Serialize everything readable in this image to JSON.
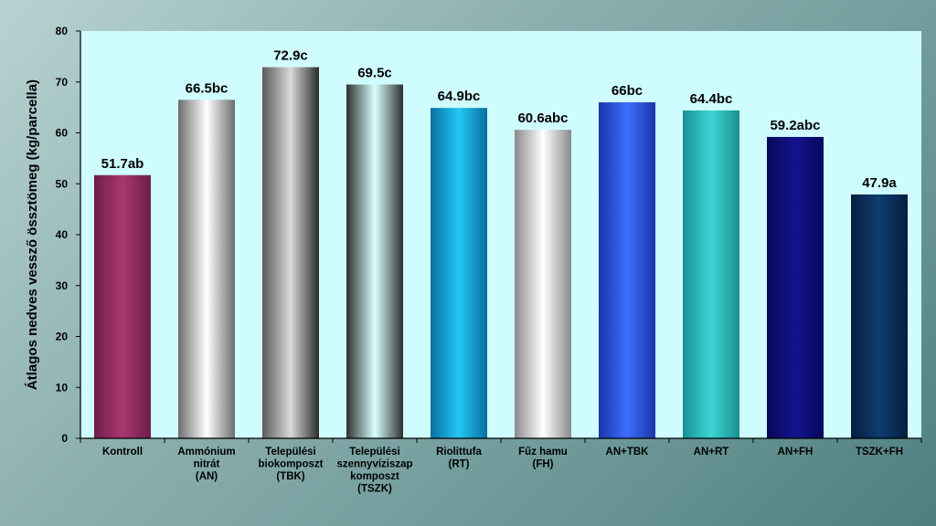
{
  "chart_data": {
    "type": "bar",
    "title": "",
    "xlabel": "",
    "ylabel": "Átlagos nedves vessző össztömeg  (kg/parcella)",
    "ylim": [
      0,
      80
    ],
    "yticks": [
      0,
      10,
      20,
      30,
      40,
      50,
      60,
      70,
      80
    ],
    "grid": false,
    "categories": [
      [
        "Kontroll"
      ],
      [
        "Ammónium",
        "nitrát",
        "(AN)"
      ],
      [
        "Települési",
        "biokomposzt",
        "(TBK)"
      ],
      [
        "Települési",
        "szennyvíziszap",
        "komposzt",
        "(TSZK)"
      ],
      [
        "Riolittufa",
        "(RT)"
      ],
      [
        "Fűz hamu",
        "(FH)"
      ],
      [
        "AN+TBK"
      ],
      [
        "AN+RT"
      ],
      [
        "AN+FH"
      ],
      [
        "TSZK+FH"
      ]
    ],
    "values": [
      51.7,
      66.5,
      72.9,
      69.5,
      64.9,
      60.6,
      66.0,
      64.4,
      59.2,
      47.9
    ],
    "data_labels": [
      "51.7ab",
      "66.5bc",
      "72.9c",
      "69.5c",
      "64.9bc",
      "60.6abc",
      "66bc",
      "64.4bc",
      "59.2abc",
      "47.9a"
    ],
    "bar_colors": [
      [
        "#6e1d48",
        "#a8386f",
        "#6e1d48"
      ],
      [
        "#6d6d6d",
        "#ffffff",
        "#6d6d6d"
      ],
      [
        "#5a5a5a",
        "#d9d9d9",
        "#2a2a2a"
      ],
      [
        "#2f2f2f",
        "#d8ffff",
        "#2f2f2f"
      ],
      [
        "#0a6fa0",
        "#22c8f5",
        "#0a6fa0"
      ],
      [
        "#8a8a8a",
        "#ffffff",
        "#8a8a8a"
      ],
      [
        "#1b36a8",
        "#3d6dff",
        "#1b36a8"
      ],
      [
        "#1b8f8f",
        "#3cd6d6",
        "#1b8f8f"
      ],
      [
        "#08085a",
        "#13138f",
        "#08085a"
      ],
      [
        "#051f3f",
        "#0d3d70",
        "#051f3f"
      ]
    ],
    "plot_background": "#cffcff"
  }
}
